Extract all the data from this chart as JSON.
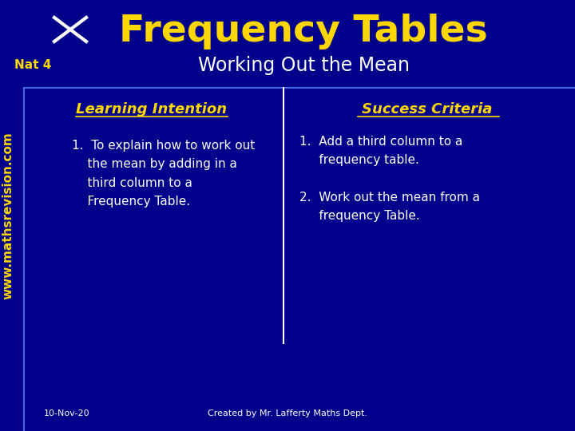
{
  "bg_color": "#00008B",
  "title": "Frequency Tables",
  "subtitle": "Working Out the Mean",
  "nat_label": "Nat 4",
  "section_left_title": "Learning Intention",
  "section_right_title": "Success Criteria",
  "left_item": "1.  To explain how to work out\n    the mean by adding in a\n    third column to a\n    Frequency Table.",
  "right_item1": "1.  Add a third column to a\n     frequency table.",
  "right_item2": "2.  Work out the mean from a\n     frequency Table.",
  "footer_left": "10-Nov-20",
  "footer_right": "Created by Mr. Lafferty Maths Dept.",
  "title_color": "#FFD700",
  "subtitle_color": "#FFFFFF",
  "nat_color": "#FFD700",
  "section_title_color": "#FFD700",
  "body_text_color": "#FFFFFF",
  "sidebar_text_color": "#FFD700",
  "footer_color": "#FFFFFF",
  "divider_color": "#FFFFFF",
  "left_line_color": "#4169E1",
  "top_line_color": "#4169E1"
}
